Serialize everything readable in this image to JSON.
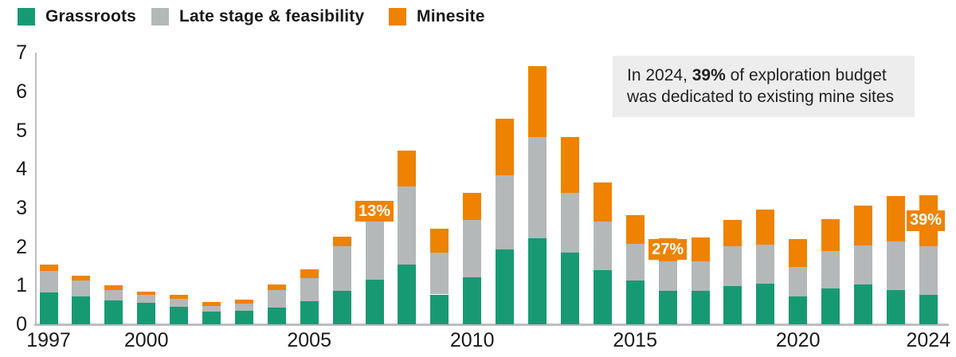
{
  "chart_data": {
    "type": "bar",
    "stacked": true,
    "categories": [
      1997,
      1998,
      1999,
      2000,
      2001,
      2002,
      2003,
      2004,
      2005,
      2006,
      2007,
      2008,
      2009,
      2010,
      2011,
      2012,
      2013,
      2014,
      2015,
      2016,
      2017,
      2018,
      2019,
      2020,
      2021,
      2022,
      2023,
      2024
    ],
    "series": [
      {
        "name": "Grassroots",
        "color": "#179a74",
        "values": [
          0.82,
          0.71,
          0.62,
          0.55,
          0.45,
          0.33,
          0.35,
          0.43,
          0.6,
          0.87,
          1.16,
          1.53,
          0.77,
          1.22,
          1.94,
          2.22,
          1.84,
          1.39,
          1.13,
          0.86,
          0.86,
          0.98,
          1.05,
          0.72,
          0.92,
          1.03,
          0.88,
          0.77
        ]
      },
      {
        "name": "Late stage & feasibility",
        "color": "#b5b8b8",
        "values": [
          0.55,
          0.41,
          0.26,
          0.21,
          0.2,
          0.15,
          0.19,
          0.46,
          0.6,
          1.14,
          1.55,
          2.02,
          1.07,
          1.46,
          1.91,
          2.61,
          1.55,
          1.26,
          0.95,
          0.76,
          0.77,
          1.03,
          1.0,
          0.76,
          0.97,
          1.0,
          1.25,
          1.25
        ]
      },
      {
        "name": "Minesite",
        "color": "#ef8200",
        "values": [
          0.18,
          0.14,
          0.12,
          0.08,
          0.12,
          0.1,
          0.1,
          0.13,
          0.22,
          0.24,
          0.4,
          0.93,
          0.62,
          0.7,
          1.44,
          1.82,
          1.44,
          1.0,
          0.74,
          0.6,
          0.6,
          0.67,
          0.91,
          0.72,
          0.83,
          1.03,
          1.17,
          1.31
        ]
      }
    ],
    "ylim": [
      0,
      7
    ],
    "yticks": [
      0,
      1,
      2,
      3,
      4,
      5,
      6,
      7
    ],
    "xticks": [
      1997,
      2000,
      2005,
      2010,
      2015,
      2020,
      2024
    ],
    "grid": false,
    "legend_position": "top-left",
    "annotations": [
      {
        "year": 2007,
        "label": "13%"
      },
      {
        "year": 2016,
        "label": "27%"
      },
      {
        "year": 2024,
        "label": "39%"
      }
    ]
  },
  "note": {
    "line1_pre": "In 2024, ",
    "line1_bold": "39%",
    "line1_post": " of exploration budget",
    "line2": "was dedicated to existing mine sites"
  },
  "colors": {
    "grassroots": "#179a74",
    "late_stage": "#b5b8b8",
    "minesite": "#ef8200",
    "axis": "#bdbdbd",
    "note_bg": "#ededed",
    "text": "#1a1a1a"
  }
}
